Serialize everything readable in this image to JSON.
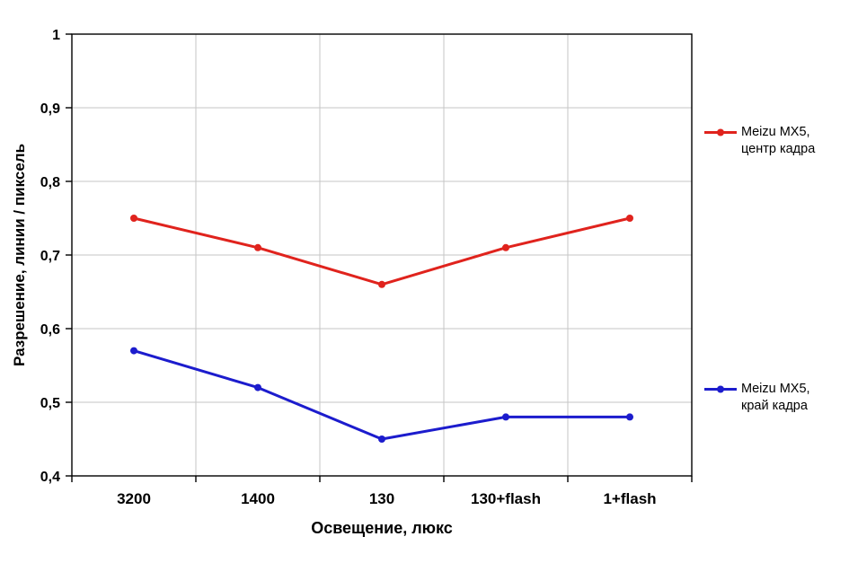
{
  "chart_data": {
    "type": "line",
    "title": "",
    "xlabel": "Освещение, люкс",
    "ylabel": "Разрешение, линии / пиксель",
    "categories": [
      "3200",
      "1400",
      "130",
      "130+flash",
      "1+flash"
    ],
    "series": [
      {
        "name": "Meizu MX5,\nцентр кадра",
        "color": "#e0231d",
        "values": [
          0.75,
          0.71,
          0.66,
          0.71,
          0.75
        ]
      },
      {
        "name": "Meizu MX5,\nкрай кадра",
        "color": "#1c1ccd",
        "values": [
          0.57,
          0.52,
          0.45,
          0.48,
          0.48
        ]
      }
    ],
    "ylim": [
      0.4,
      1.0
    ],
    "ytick_labels": [
      "0,4",
      "0,5",
      "0,6",
      "0,7",
      "0,8",
      "0,9",
      "1"
    ],
    "grid": true,
    "legend_position": "right",
    "colors": {
      "grid": "#c6c6c6",
      "axis": "#000000",
      "background": "#ffffff",
      "text": "#000000"
    }
  }
}
